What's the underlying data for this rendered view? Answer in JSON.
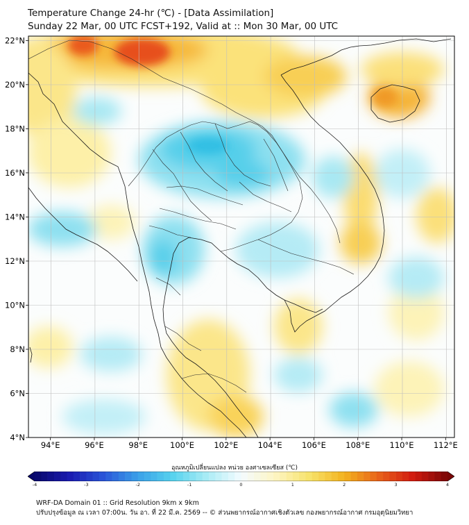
{
  "title": {
    "line1": "Temperature Change 24-hr (℃) - [Data Assimilation]",
    "line2": "Sunday 22 Mar, 00 UTC FCST+192, Valid at :: Mon 30 Mar, 00 UTC"
  },
  "map": {
    "lon_range": [
      93,
      112.4
    ],
    "lat_range": [
      4,
      22.2
    ],
    "lon_ticks": [
      "94°E",
      "96°E",
      "98°E",
      "100°E",
      "102°E",
      "104°E",
      "106°E",
      "108°E",
      "110°E",
      "112°E"
    ],
    "lat_ticks": [
      "4°N",
      "6°N",
      "8°N",
      "10°N",
      "12°N",
      "14°N",
      "16°N",
      "18°N",
      "20°N",
      "22°N"
    ],
    "lon_values": [
      94,
      96,
      98,
      100,
      102,
      104,
      106,
      108,
      110,
      112
    ],
    "lat_values": [
      4,
      6,
      8,
      10,
      12,
      14,
      16,
      18,
      20,
      22
    ]
  },
  "colorbar": {
    "label": "อุณหภูมิเปลี่ยนแปลง หน่วย องศาเซลเซียส (℃)",
    "ticks": [
      "-4",
      "-3",
      "-2",
      "-1",
      "0",
      "1",
      "2",
      "3",
      "4"
    ],
    "min": -4,
    "max": 4,
    "colors": [
      "#08086b",
      "#1a1ab0",
      "#2b55d8",
      "#3aa0e8",
      "#56d2ee",
      "#a9ecf5",
      "#f4fbff",
      "#fdf5c2",
      "#f7e26a",
      "#f3b21f",
      "#e8621a",
      "#d11b10",
      "#7a0606"
    ]
  },
  "footer": {
    "line1": "WRF-DA Domain 01 :: Grid Resolution 9km x 9km",
    "line2": "ปรับปรุงข้อมูล ณ เวลา 07:00น. วัน อา. ที่ 22 มี.ค. 2569 -- © ส่วนพยากรณ์อากาศเชิงตัวเลข กองพยากรณ์อากาศ กรมอุตุนิยมวิทยา"
  }
}
